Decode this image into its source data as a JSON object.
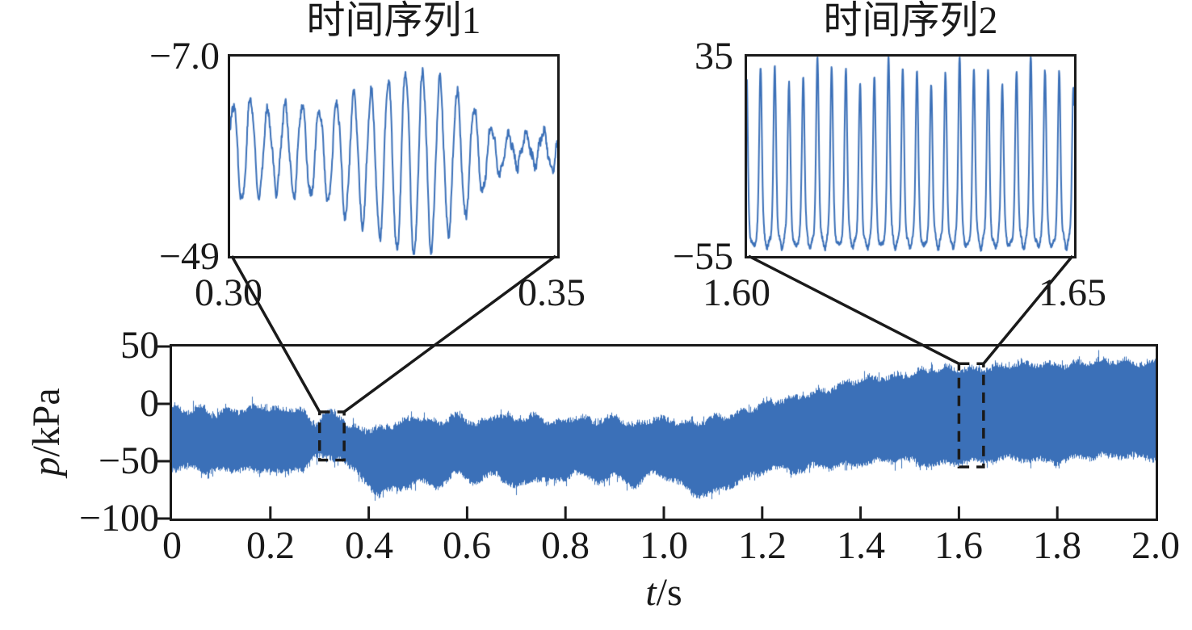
{
  "figure": {
    "background": "#ffffff",
    "line_color": "#3b70b8",
    "axis_color": "#1a1a1a"
  },
  "chart_data": [
    {
      "id": "main",
      "type": "line",
      "series_name": "pressure time series",
      "xlabel": "t/s",
      "xlabel_parts": {
        "var": "t",
        "unit": "/s"
      },
      "ylabel": "p/kPa",
      "ylabel_parts": {
        "var": "p",
        "unit": "/kPa"
      },
      "xlim": [
        0,
        2.0
      ],
      "ylim": [
        -100,
        50
      ],
      "xticks": [
        0,
        0.2,
        0.4,
        0.6,
        0.8,
        1.0,
        1.2,
        1.4,
        1.6,
        1.8,
        2.0
      ],
      "xtick_labels": [
        "0",
        "0.2",
        "0.4",
        "0.6",
        "0.8",
        "1.0",
        "1.2",
        "1.4",
        "1.6",
        "1.8",
        "2.0"
      ],
      "yticks": [
        50,
        0,
        -50,
        -100
      ],
      "ytick_labels": [
        "50",
        "0",
        "−50",
        "−100"
      ],
      "grid": false,
      "envelope": {
        "t": [
          0,
          0.03,
          0.06,
          0.09,
          0.12,
          0.15,
          0.18,
          0.21,
          0.24,
          0.27,
          0.29,
          0.31,
          0.33,
          0.345,
          0.36,
          0.39,
          0.42,
          0.46,
          0.5,
          0.54,
          0.58,
          0.62,
          0.66,
          0.7,
          0.74,
          0.78,
          0.82,
          0.86,
          0.9,
          0.94,
          0.98,
          1.02,
          1.06,
          1.1,
          1.14,
          1.18,
          1.22,
          1.26,
          1.3,
          1.35,
          1.4,
          1.45,
          1.5,
          1.55,
          1.6,
          1.65,
          1.7,
          1.75,
          1.8,
          1.85,
          1.9,
          1.95,
          2.0
        ],
        "top": [
          -3,
          -8,
          -4,
          -9,
          -3,
          -6,
          -2,
          -7,
          -3,
          -6,
          -16,
          -9,
          -7,
          -12,
          -22,
          -23,
          -22,
          -15,
          -12,
          -18,
          -10,
          -16,
          -9,
          -15,
          -11,
          -16,
          -10,
          -17,
          -12,
          -18,
          -11,
          -16,
          -19,
          -12,
          -8,
          -4,
          0,
          5,
          10,
          15,
          20,
          24,
          27,
          29,
          31,
          32,
          33,
          34,
          35,
          36,
          36,
          37,
          38
        ],
        "bottom": [
          -57,
          -52,
          -60,
          -54,
          -62,
          -55,
          -63,
          -56,
          -60,
          -54,
          -44,
          -47,
          -49,
          -46,
          -56,
          -68,
          -80,
          -73,
          -66,
          -72,
          -62,
          -70,
          -60,
          -72,
          -63,
          -70,
          -60,
          -68,
          -62,
          -70,
          -60,
          -68,
          -80,
          -78,
          -68,
          -62,
          -57,
          -60,
          -55,
          -53,
          -52,
          -51,
          -50,
          -52,
          -50,
          -51,
          -49,
          -48,
          -49,
          -47,
          -47,
          -45,
          -46
        ]
      },
      "zoom_regions": [
        {
          "label": "时间序列1",
          "t0": 0.3,
          "t1": 0.35,
          "p_low": -49,
          "p_high": -7
        },
        {
          "label": "时间序列2",
          "t0": 1.6,
          "t1": 1.65,
          "p_low": -55,
          "p_high": 35
        }
      ]
    },
    {
      "id": "inset1",
      "type": "line",
      "title": "时间序列1",
      "xlim": [
        0.3,
        0.35
      ],
      "ylim": [
        -49,
        -7
      ],
      "corner_labels": {
        "top_left": "−7.0",
        "bottom_left": "−49",
        "x_left": "0.30",
        "x_right": "0.35"
      },
      "signal": {
        "cycles": 19,
        "mean": -28,
        "amp_env_u": [
          0,
          0.06,
          0.12,
          0.2,
          0.28,
          0.36,
          0.44,
          0.5,
          0.56,
          0.62,
          0.68,
          0.74,
          0.79,
          0.84,
          0.9,
          0.95,
          1.0
        ],
        "amp_env_a": [
          10,
          11,
          8,
          10,
          9,
          13,
          15,
          18,
          20,
          18,
          15,
          11,
          6,
          3.5,
          3,
          3.5,
          5
        ]
      }
    },
    {
      "id": "inset2",
      "type": "line",
      "title": "时间序列2",
      "xlim": [
        1.6,
        1.65
      ],
      "ylim": [
        -55,
        35
      ],
      "corner_labels": {
        "top_left": "35",
        "bottom_left": "−55",
        "x_left": "1.60",
        "x_right": "1.65"
      },
      "signal": {
        "cycles": 23,
        "base": -47,
        "amp": 76,
        "sharpness": 3.0
      }
    }
  ]
}
